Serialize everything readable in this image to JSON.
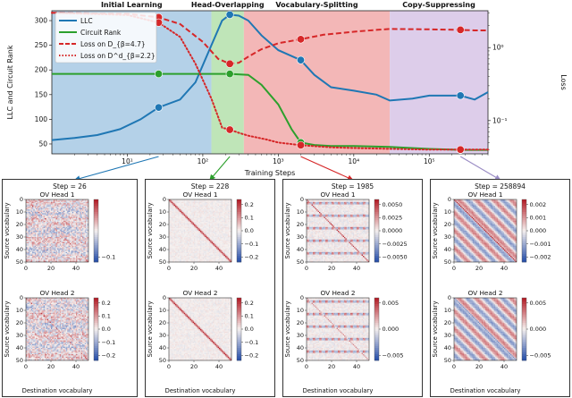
{
  "chart_data": [
    {
      "type": "line",
      "phases": [
        {
          "name": "Initial Learning",
          "color": "#b4d1e8",
          "x_start": 1,
          "x_end": 130
        },
        {
          "name": "Head-Overlapping",
          "color": "#bfe5b8",
          "x_start": 130,
          "x_end": 350
        },
        {
          "name": "Vocabulary-Splitting",
          "color": "#f3b7b7",
          "x_start": 350,
          "x_end": 30000
        },
        {
          "name": "Copy-Suppressing",
          "color": "#ddcdea",
          "x_start": 30000,
          "x_end": 600000
        }
      ],
      "xlabel": "Training Steps",
      "ylabel_left": "LLC and Circuit Rank",
      "ylabel_right": "Loss",
      "xlim": [
        1,
        600000
      ],
      "x_ticks": [
        "10¹",
        "10²",
        "10³",
        "10⁴",
        "10⁵"
      ],
      "x_tick_values": [
        10,
        100,
        1000,
        10000,
        100000
      ],
      "ylim_left": [
        30,
        320
      ],
      "y_ticks_left": [
        50,
        100,
        150,
        200,
        250,
        300
      ],
      "ylim_right": [
        0.035,
        3.2
      ],
      "y_ticks_right": [
        "10⁻¹",
        "10⁰"
      ],
      "y_tick_values_right": [
        0.1,
        1
      ],
      "legend": [
        "LLC",
        "Circuit Rank",
        "Loss on D_{β=4.7}",
        "Loss on D^d_{β=2.2}"
      ],
      "series": [
        {
          "name": "LLC",
          "color": "#1f77b4",
          "style": "solid",
          "axis": "left",
          "x": [
            1,
            2,
            4,
            8,
            15,
            26,
            50,
            80,
            130,
            180,
            228,
            300,
            400,
            600,
            1000,
            1985,
            3000,
            5000,
            10000,
            20000,
            30000,
            60000,
            100000,
            258894,
            400000,
            600000
          ],
          "y": [
            58,
            62,
            68,
            80,
            100,
            124,
            140,
            175,
            250,
            300,
            312,
            310,
            300,
            270,
            240,
            220,
            190,
            165,
            158,
            150,
            138,
            142,
            148,
            148,
            140,
            155
          ]
        },
        {
          "name": "Circuit Rank",
          "color": "#2ca02c",
          "style": "solid",
          "axis": "left",
          "x": [
            1,
            26,
            228,
            400,
            600,
            1000,
            1500,
            1985,
            3000,
            5000,
            10000,
            30000,
            100000,
            258894,
            600000
          ],
          "y": [
            192,
            192,
            192,
            190,
            170,
            130,
            80,
            53,
            48,
            46,
            46,
            44,
            40,
            38,
            38
          ]
        },
        {
          "name": "Loss on D_{β=4.7}",
          "color": "#d62728",
          "style": "dashed",
          "axis": "right",
          "x": [
            1,
            10,
            26,
            50,
            100,
            160,
            228,
            300,
            400,
            600,
            1000,
            1985,
            4000,
            10000,
            20000,
            30000,
            100000,
            258894,
            400000,
            600000
          ],
          "y": [
            3.0,
            2.9,
            2.6,
            2.1,
            1.2,
            0.7,
            0.6,
            0.62,
            0.75,
            0.95,
            1.15,
            1.3,
            1.5,
            1.65,
            1.75,
            1.8,
            1.78,
            1.75,
            1.72,
            1.72
          ]
        },
        {
          "name": "Loss on D^d_{β=2.2}",
          "color": "#d62728",
          "style": "dotted",
          "axis": "right",
          "x": [
            1,
            10,
            26,
            50,
            80,
            130,
            180,
            228,
            300,
            400,
            700,
            1000,
            1985,
            5000,
            10000,
            30000,
            100000,
            258894,
            600000
          ],
          "y": [
            3.0,
            2.8,
            2.2,
            1.4,
            0.6,
            0.2,
            0.08,
            0.075,
            0.068,
            0.062,
            0.055,
            0.05,
            0.046,
            0.043,
            0.042,
            0.041,
            0.04,
            0.04,
            0.04
          ]
        }
      ],
      "markers": [
        {
          "series": "LLC",
          "x": 26,
          "y": 124
        },
        {
          "series": "LLC",
          "x": 228,
          "y": 312
        },
        {
          "series": "LLC",
          "x": 1985,
          "y": 220
        },
        {
          "series": "LLC",
          "x": 258894,
          "y": 148
        },
        {
          "series": "Circuit Rank",
          "x": 26,
          "y": 192
        },
        {
          "series": "Circuit Rank",
          "x": 228,
          "y": 192
        },
        {
          "series": "Circuit Rank",
          "x": 1985,
          "y": 53
        },
        {
          "series": "Circuit Rank",
          "x": 258894,
          "y": 38
        },
        {
          "series": "Loss on D_{β=4.7}",
          "x": 26,
          "y": 2.6
        },
        {
          "series": "Loss on D_{β=4.7}",
          "x": 228,
          "y": 0.6
        },
        {
          "series": "Loss on D_{β=4.7}",
          "x": 1985,
          "y": 1.3
        },
        {
          "series": "Loss on D_{β=4.7}",
          "x": 258894,
          "y": 1.75
        },
        {
          "series": "Loss on D^d_{β=2.2}",
          "x": 26,
          "y": 2.2
        },
        {
          "series": "Loss on D^d_{β=2.2}",
          "x": 228,
          "y": 0.075
        },
        {
          "series": "Loss on D^d_{β=2.2}",
          "x": 1985,
          "y": 0.046
        },
        {
          "series": "Loss on D^d_{β=2.2}",
          "x": 258894,
          "y": 0.04
        }
      ]
    },
    {
      "type": "heatmap",
      "panels": [
        {
          "title": "Step = 26",
          "pattern": "noisy",
          "heads": [
            {
              "title": "OV Head 1",
              "colorbar_ticks": [
                "−0.1"
              ],
              "colorbar_values": [
                -0.1
              ]
            },
            {
              "title": "OV Head 2",
              "colorbar_ticks": [
                "0.2",
                "0.1",
                "0.0",
                "−0.1",
                "−0.2"
              ],
              "colorbar_values": [
                0.2,
                0.1,
                0.0,
                -0.1,
                -0.2
              ]
            }
          ]
        },
        {
          "title": "Step = 228",
          "pattern": "diagonal",
          "heads": [
            {
              "title": "OV Head 1",
              "colorbar_ticks": [
                "0.2",
                "0.1",
                "0.0",
                "−0.1",
                "−0.2"
              ],
              "colorbar_values": [
                0.2,
                0.1,
                0.0,
                -0.1,
                -0.2
              ]
            },
            {
              "title": "OV Head 2",
              "colorbar_ticks": [
                "0.2",
                "0.1",
                "0.0",
                "−0.1",
                "−0.2"
              ],
              "colorbar_values": [
                0.2,
                0.1,
                0.0,
                -0.1,
                -0.2
              ]
            }
          ]
        },
        {
          "title": "Step = 1985",
          "pattern": "grid",
          "heads": [
            {
              "title": "OV Head 1",
              "colorbar_ticks": [
                "0.0050",
                "0.0025",
                "0.0000",
                "−0.0025",
                "−0.0050"
              ],
              "colorbar_values": [
                0.005,
                0.0025,
                0,
                -0.0025,
                -0.005
              ]
            },
            {
              "title": "OV Head 2",
              "colorbar_ticks": [
                "0.005",
                "0.000",
                "−0.005"
              ],
              "colorbar_values": [
                0.005,
                0,
                -0.005
              ]
            }
          ]
        },
        {
          "title": "Step = 258894",
          "pattern": "bands",
          "heads": [
            {
              "title": "OV Head 1",
              "colorbar_ticks": [
                "0.002",
                "0.001",
                "0.000",
                "−0.001",
                "−0.002"
              ],
              "colorbar_values": [
                0.002,
                0.001,
                0,
                -0.001,
                -0.002
              ]
            },
            {
              "title": "OV Head 2",
              "colorbar_ticks": [
                "0.005",
                "0.000",
                "−0.005"
              ],
              "colorbar_values": [
                0.005,
                0,
                -0.005
              ]
            }
          ]
        }
      ],
      "xlabel": "Destination vocabulary",
      "ylabel": "Source vocabulary",
      "x_ticks": [
        "0",
        "20",
        "40"
      ],
      "x_tick_values": [
        0,
        20,
        40
      ],
      "y_ticks": [
        "0",
        "10",
        "20",
        "30",
        "40",
        "50"
      ],
      "y_tick_values": [
        0,
        10,
        20,
        30,
        40,
        50
      ],
      "vocab_size": 50
    }
  ]
}
